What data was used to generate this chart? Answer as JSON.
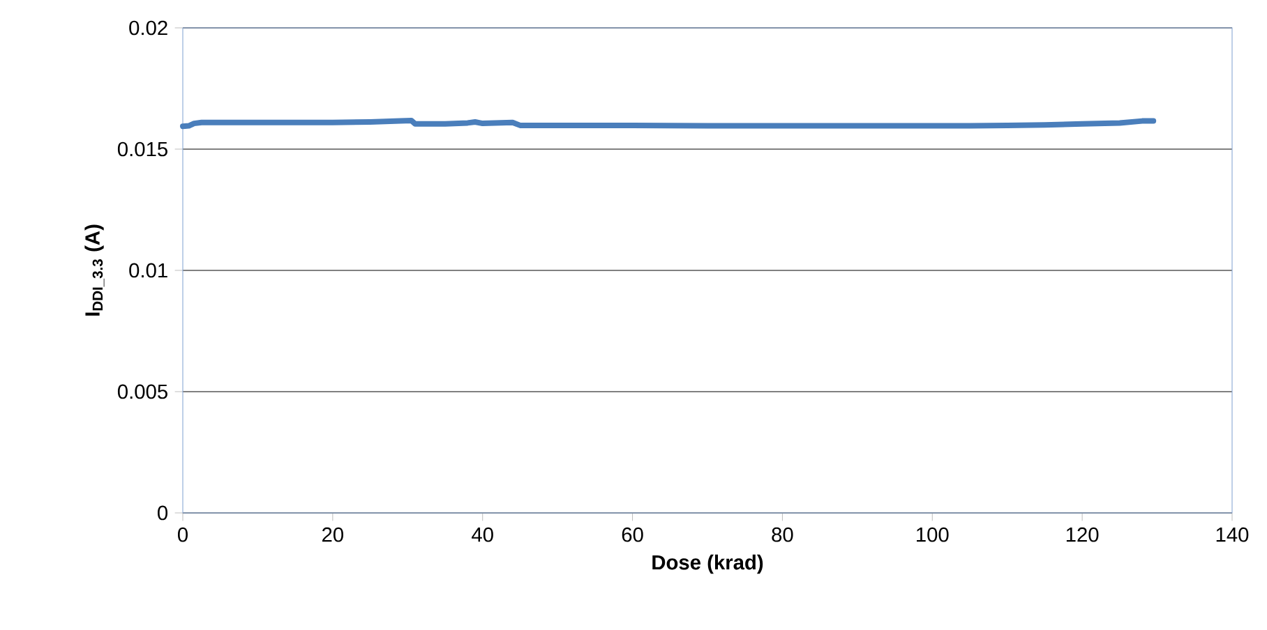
{
  "chart_data": {
    "type": "line",
    "xlabel": "Dose (krad)",
    "ylabel": "I$_{DDI_3.3}$ (A)",
    "x": [
      0,
      0.8,
      1.5,
      2.5,
      5,
      10,
      15,
      20,
      25,
      29,
      30.5,
      31,
      35,
      38,
      39,
      40,
      44,
      45,
      50,
      60,
      70,
      80,
      90,
      100,
      105,
      110,
      115,
      120,
      125,
      128,
      129.5
    ],
    "series": [
      {
        "color": "#4a7ebb",
        "values": [
          0.01594,
          0.01596,
          0.01606,
          0.0161,
          0.0161,
          0.0161,
          0.0161,
          0.0161,
          0.01612,
          0.01616,
          0.01618,
          0.01604,
          0.01604,
          0.01608,
          0.01612,
          0.01606,
          0.0161,
          0.01598,
          0.01598,
          0.01598,
          0.01596,
          0.01596,
          0.01596,
          0.01596,
          0.01596,
          0.01598,
          0.016,
          0.01604,
          0.01608,
          0.01616,
          0.01616
        ]
      }
    ],
    "xlim": [
      0,
      140
    ],
    "xticks": [
      0,
      20,
      40,
      60,
      80,
      100,
      120,
      140
    ],
    "ylim": [
      0,
      0.02
    ],
    "yticks": [
      0,
      0.005,
      0.01,
      0.015,
      0.02
    ],
    "grid": "y",
    "marker": "none",
    "line_style": "solid"
  }
}
